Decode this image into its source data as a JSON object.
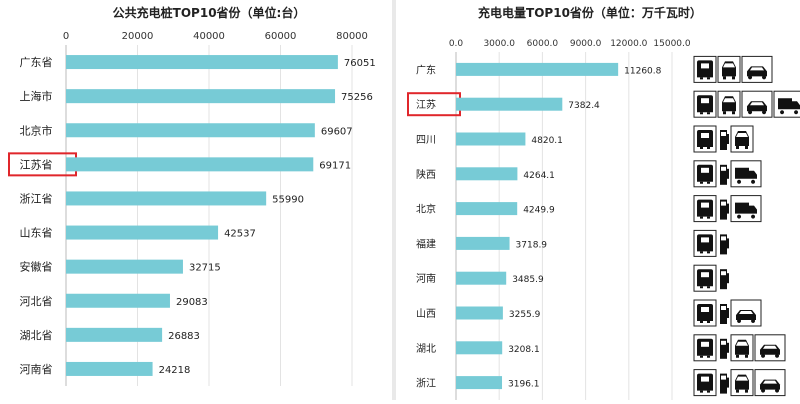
{
  "chart_data": [
    {
      "type": "bar",
      "orientation": "horizontal",
      "title": "公共充电桩TOP10省份（单位:台）",
      "xlabel": "",
      "ylabel": "",
      "xlim": [
        0,
        80000
      ],
      "ticks": [
        "0",
        "20000",
        "40000",
        "60000",
        "80000"
      ],
      "tick_values": [
        0,
        20000,
        40000,
        60000,
        80000
      ],
      "grid": true,
      "categories": [
        "广东省",
        "上海市",
        "北京市",
        "江苏省",
        "浙江省",
        "山东省",
        "安徽省",
        "河北省",
        "湖北省",
        "河南省"
      ],
      "values": [
        76051,
        75256,
        69607,
        69171,
        55990,
        42537,
        32715,
        29083,
        26883,
        24218
      ],
      "value_labels": [
        "76051",
        "75256",
        "69607",
        "69171",
        "55990",
        "42537",
        "32715",
        "29083",
        "26883",
        "24218"
      ],
      "highlight": "江苏省",
      "bar_color": "#77cbd6",
      "highlight_color": "#e0262b"
    },
    {
      "type": "bar",
      "orientation": "horizontal",
      "title": "充电电量TOP10省份（单位：万千瓦时）",
      "xlabel": "",
      "ylabel": "",
      "xlim": [
        0,
        15000
      ],
      "ticks": [
        "0.0",
        "3000.0",
        "6000.0",
        "9000.0",
        "12000.0",
        "15000.0"
      ],
      "tick_values": [
        0,
        3000,
        6000,
        9000,
        12000,
        15000
      ],
      "grid": true,
      "categories": [
        "广东",
        "江苏",
        "四川",
        "陕西",
        "北京",
        "福建",
        "河南",
        "山西",
        "湖北",
        "浙江"
      ],
      "values": [
        11260.8,
        7382.4,
        4820.1,
        4264.1,
        4249.9,
        3718.9,
        3485.9,
        3255.9,
        3208.1,
        3196.1
      ],
      "value_labels": [
        "11260.8",
        "7382.4",
        "4820.1",
        "4264.1",
        "4249.9",
        "3718.9",
        "3485.9",
        "3255.9",
        "3208.1",
        "3196.1"
      ],
      "highlight": "江苏",
      "bar_color": "#77cbd6",
      "highlight_color": "#e0262b",
      "row_icons": [
        [
          "bus-icon",
          "car-icon",
          "taxi-icon"
        ],
        [
          "bus-icon",
          "car-icon",
          "taxi-icon",
          "truck-icon"
        ],
        [
          "bus-icon",
          "charging-pile-icon",
          "car-icon"
        ],
        [
          "bus-icon",
          "charging-pile-icon",
          "truck-icon"
        ],
        [
          "bus-icon",
          "charging-pile-icon",
          "truck-icon"
        ],
        [
          "bus-icon",
          "charging-pile-icon"
        ],
        [
          "bus-icon",
          "charging-pile-icon"
        ],
        [
          "bus-icon",
          "charging-pile-icon",
          "taxi-icon"
        ],
        [
          "bus-icon",
          "charging-pile-icon",
          "car-icon",
          "taxi-icon"
        ],
        [
          "bus-icon",
          "charging-pile-icon",
          "car-icon",
          "taxi-icon"
        ]
      ]
    }
  ]
}
